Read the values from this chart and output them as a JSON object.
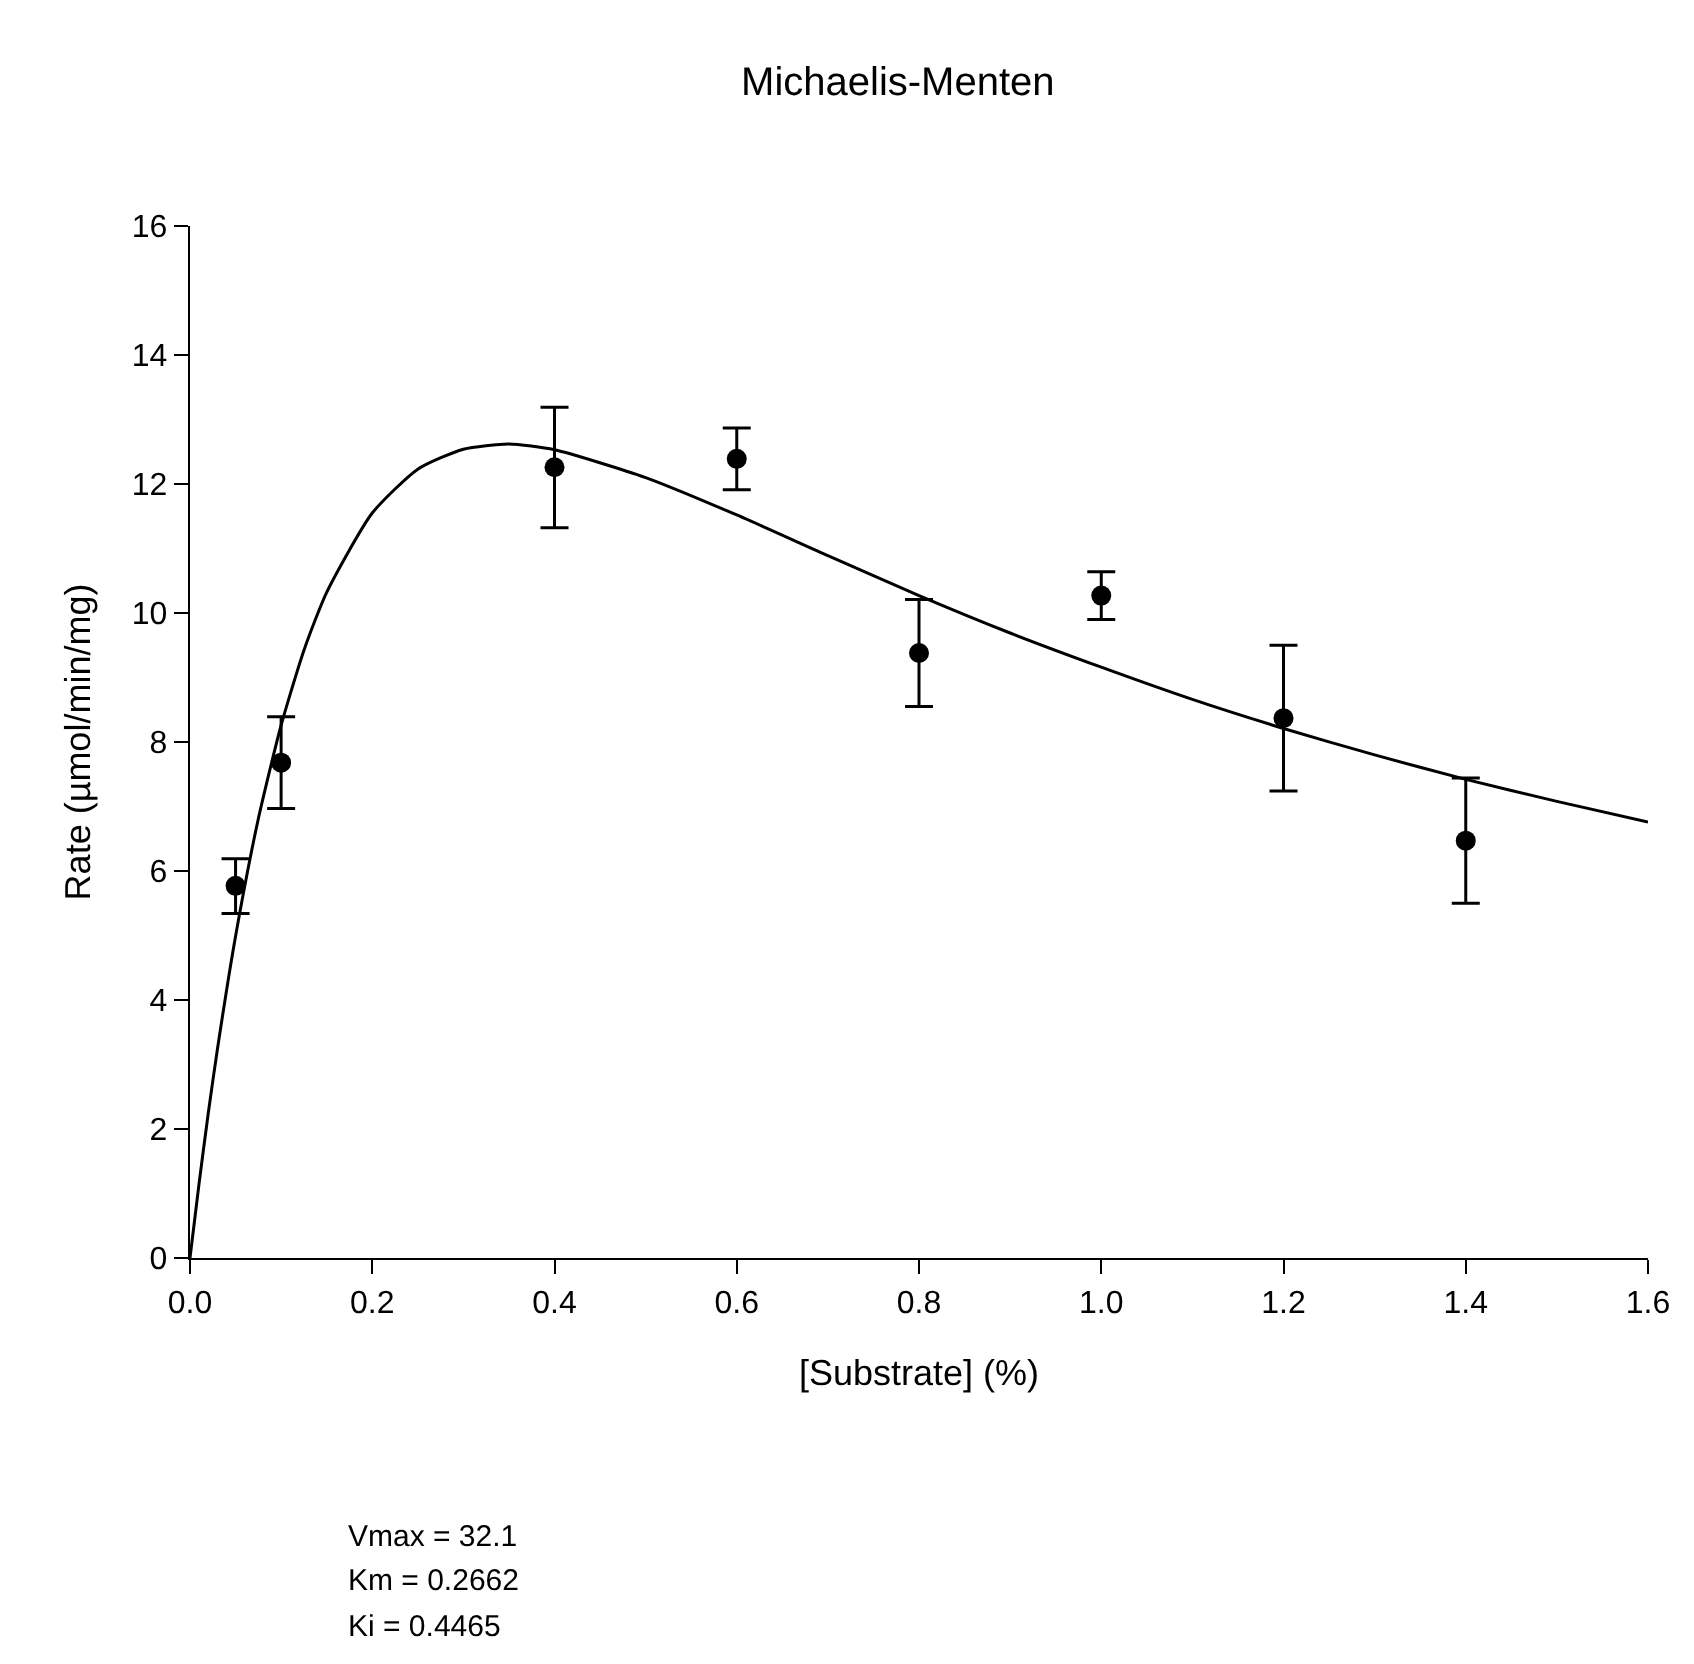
{
  "chart_data": {
    "type": "scatter",
    "title": "Michaelis-Menten",
    "xlabel": "[Substrate] (%)",
    "ylabel": "Rate (µmol/min/mg)",
    "xlim": [
      0,
      1.6
    ],
    "xticks": [
      {
        "value": 0,
        "label": "0.0"
      },
      0.2,
      0.4,
      0.6,
      0.8,
      {
        "value": 1,
        "label": "1.0"
      },
      1.2,
      1.4,
      1.6
    ],
    "ylim": [
      0,
      16
    ],
    "yticks": [
      0,
      2,
      4,
      6,
      8,
      10,
      12,
      14,
      16
    ],
    "series": [
      {
        "type": "line",
        "color": "#000000",
        "marker": "none",
        "line_style": "solid",
        "x": [
          0,
          0.01,
          0.02,
          0.03,
          0.05,
          0.075,
          0.1,
          0.125,
          0.15,
          0.2,
          0.25,
          0.3,
          0.35,
          0.4,
          0.5,
          0.6,
          0.7,
          0.8,
          0.9,
          1.0,
          1.1,
          1.2,
          1.3,
          1.4,
          1.5,
          1.6
        ],
        "values": [
          0,
          1.16,
          2.24,
          3.23,
          4.99,
          6.81,
          8.26,
          9.42,
          10.32,
          11.55,
          12.23,
          12.54,
          12.62,
          12.53,
          12.1,
          11.52,
          10.89,
          10.27,
          9.69,
          9.16,
          8.66,
          8.21,
          7.8,
          7.42,
          7.08,
          6.76
        ]
      },
      {
        "color": "#000000",
        "marker": "circle",
        "x": [
          0.05,
          0.1,
          0.4,
          0.6,
          0.8,
          1.0,
          1.2,
          1.4
        ],
        "values": [
          5.77,
          7.68,
          12.26,
          12.39,
          9.38,
          10.27,
          8.37,
          6.47
        ],
        "errors": [
          [
            5.34,
            6.19
          ],
          [
            6.97,
            8.39
          ],
          [
            11.32,
            13.19
          ],
          [
            11.91,
            12.87
          ],
          [
            8.55,
            10.21
          ],
          [
            9.9,
            10.64
          ],
          [
            7.24,
            9.5
          ],
          [
            5.5,
            7.44
          ]
        ]
      }
    ],
    "annotations": [
      "Vmax = 32.1",
      "Km = 0.2662",
      "Ki = 0.4465"
    ]
  }
}
